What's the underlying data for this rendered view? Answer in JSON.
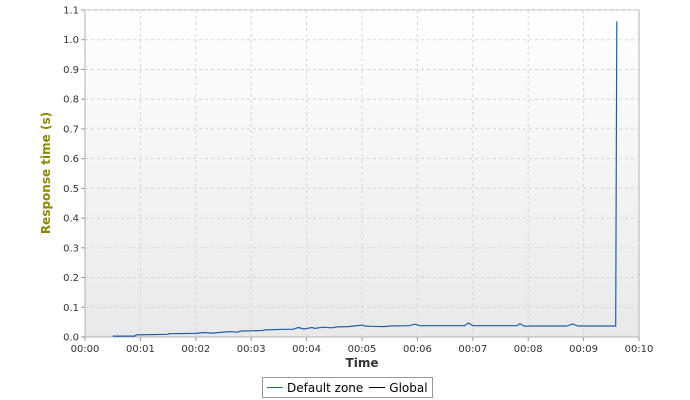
{
  "chart_data": {
    "type": "line",
    "title": "",
    "xlabel": "Time",
    "ylabel": "Response time (s)",
    "xlim_minutes": [
      0,
      10
    ],
    "ylim": [
      0,
      1.1
    ],
    "grid": true,
    "legend_placement": "bottom-center",
    "x_tick_labels": [
      "00:00",
      "00:01",
      "00:02",
      "00:03",
      "00:04",
      "00:05",
      "00:06",
      "00:07",
      "00:08",
      "00:09",
      "00:10"
    ],
    "y_tick_labels": [
      "0.0",
      "0.1",
      "0.2",
      "0.3",
      "0.4",
      "0.5",
      "0.6",
      "0.7",
      "0.8",
      "0.9",
      "1.0",
      "1.1"
    ],
    "series": [
      {
        "name": "Default zone",
        "color": "#1f5fa8",
        "x": [
          0.5,
          0.9,
          0.92,
          1.5,
          1.52,
          2.0,
          2.15,
          2.3,
          2.6,
          2.75,
          2.8,
          3.2,
          3.25,
          3.6,
          3.75,
          3.85,
          3.95,
          4.1,
          4.15,
          4.3,
          4.45,
          4.55,
          4.75,
          5.0,
          5.05,
          5.15,
          5.4,
          5.5,
          5.85,
          5.95,
          6.05,
          6.5,
          6.85,
          6.92,
          7.0,
          7.5,
          7.8,
          7.85,
          7.9,
          7.95,
          8.05,
          8.5,
          8.7,
          8.8,
          8.9,
          9.2,
          9.58,
          9.6,
          9.61
        ],
        "y": [
          0.003,
          0.003,
          0.007,
          0.009,
          0.011,
          0.012,
          0.015,
          0.013,
          0.018,
          0.016,
          0.02,
          0.022,
          0.024,
          0.026,
          0.026,
          0.032,
          0.027,
          0.032,
          0.029,
          0.033,
          0.031,
          0.034,
          0.035,
          0.04,
          0.037,
          0.036,
          0.035,
          0.037,
          0.038,
          0.043,
          0.038,
          0.038,
          0.038,
          0.047,
          0.038,
          0.038,
          0.038,
          0.045,
          0.039,
          0.036,
          0.037,
          0.037,
          0.037,
          0.044,
          0.037,
          0.037,
          0.037,
          1.06,
          1.06
        ]
      },
      {
        "name": "Global",
        "color": "#000000",
        "x": [],
        "y": []
      }
    ]
  }
}
